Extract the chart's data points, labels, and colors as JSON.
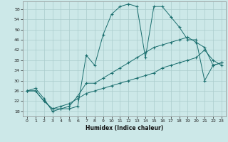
{
  "title": "",
  "xlabel": "Humidex (Indice chaleur)",
  "background_color": "#cce8e8",
  "line_color": "#1a6e6e",
  "grid_color": "#aacccc",
  "xlim": [
    -0.5,
    23.5
  ],
  "ylim": [
    16,
    61
  ],
  "yticks": [
    18,
    22,
    26,
    30,
    34,
    38,
    42,
    46,
    50,
    54,
    58
  ],
  "xticks": [
    0,
    1,
    2,
    3,
    4,
    5,
    6,
    7,
    8,
    9,
    10,
    11,
    12,
    13,
    14,
    15,
    16,
    17,
    18,
    19,
    20,
    21,
    22,
    23
  ],
  "series1_x": [
    0,
    1,
    2,
    3,
    4,
    5,
    6,
    7,
    8,
    9,
    10,
    11,
    12,
    13,
    14,
    15,
    16,
    17,
    18,
    19,
    20,
    21,
    22,
    23
  ],
  "series1_y": [
    26,
    27,
    23,
    18,
    19,
    19,
    20,
    40,
    36,
    48,
    56,
    59,
    60,
    59,
    39,
    59,
    59,
    55,
    51,
    46,
    46,
    30,
    36,
    37
  ],
  "series2_x": [
    0,
    1,
    2,
    3,
    4,
    5,
    6,
    7,
    8,
    9,
    10,
    11,
    12,
    13,
    14,
    15,
    16,
    17,
    18,
    19,
    20,
    21,
    22,
    23
  ],
  "series2_y": [
    26,
    26,
    22,
    19,
    19,
    20,
    24,
    29,
    29,
    31,
    33,
    35,
    37,
    39,
    41,
    43,
    44,
    45,
    46,
    47,
    45,
    43,
    36,
    37
  ],
  "series3_x": [
    0,
    1,
    2,
    3,
    4,
    5,
    6,
    7,
    8,
    9,
    10,
    11,
    12,
    13,
    14,
    15,
    16,
    17,
    18,
    19,
    20,
    21,
    22,
    23
  ],
  "series3_y": [
    26,
    26,
    22,
    19,
    20,
    21,
    23,
    25,
    26,
    27,
    28,
    29,
    30,
    31,
    32,
    33,
    35,
    36,
    37,
    38,
    39,
    42,
    38,
    36
  ]
}
